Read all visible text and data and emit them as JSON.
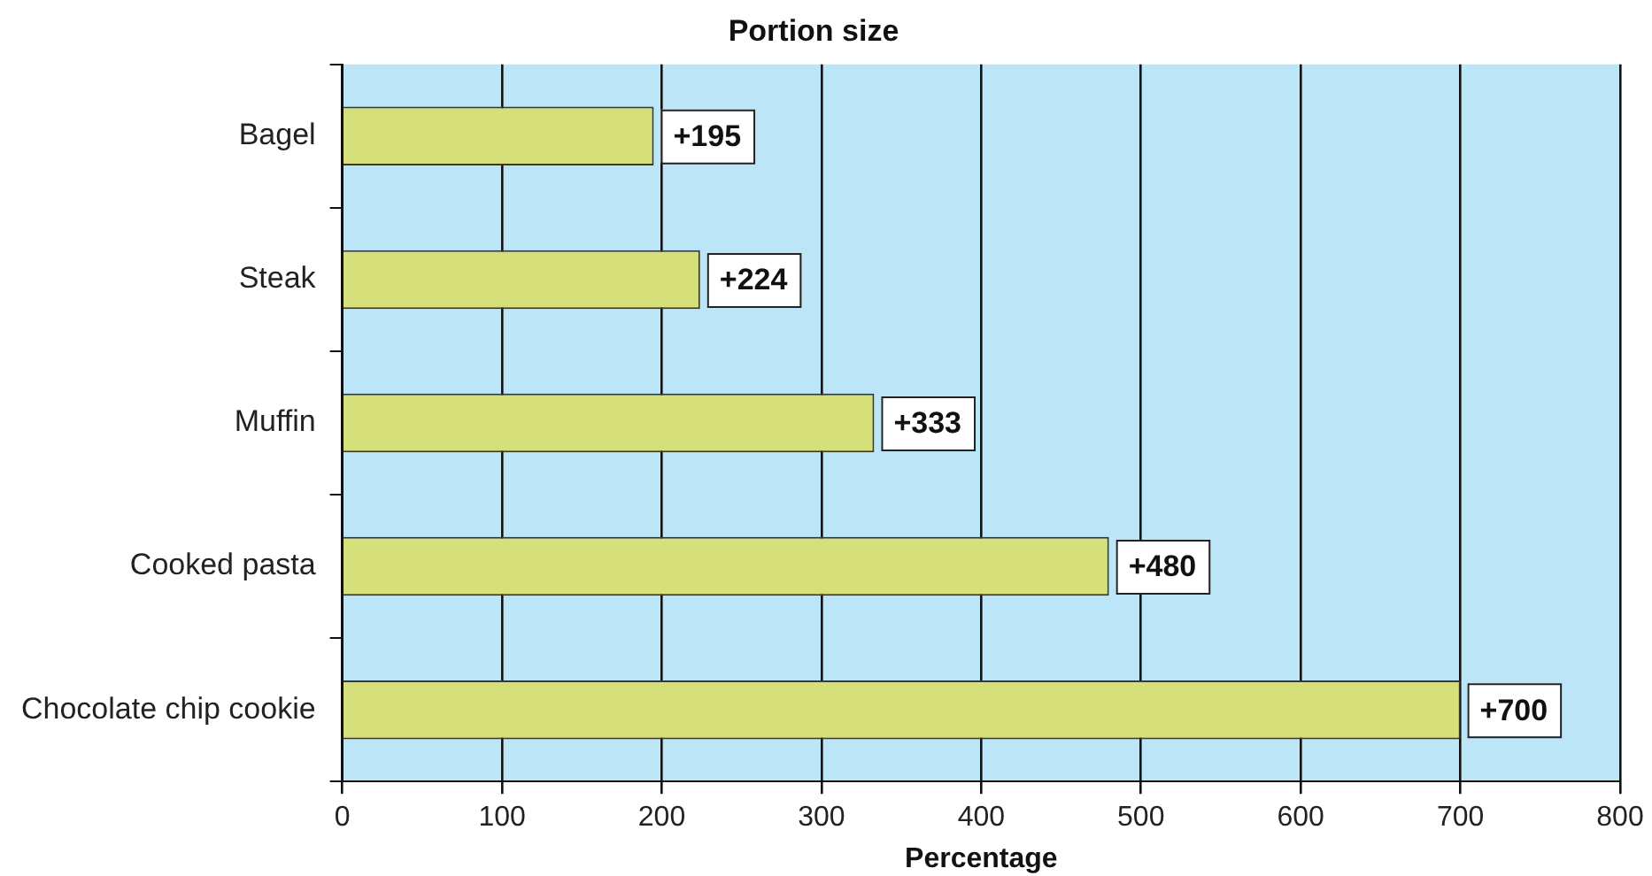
{
  "chart_data": {
    "type": "bar",
    "orientation": "horizontal",
    "title": "Portion size",
    "xlabel": "Percentage",
    "categories": [
      "Bagel",
      "Steak",
      "Muffin",
      "Cooked pasta",
      "Chocolate chip cookie"
    ],
    "values": [
      195,
      224,
      333,
      480,
      700
    ],
    "value_labels": [
      "+195",
      "+224",
      "+333",
      "+480",
      "+700"
    ],
    "color": "#d5e07a",
    "xlim": [
      0,
      800
    ],
    "xticks": [
      0,
      100,
      200,
      300,
      400,
      500,
      600,
      700,
      800
    ],
    "grid": "x",
    "legend": false
  }
}
